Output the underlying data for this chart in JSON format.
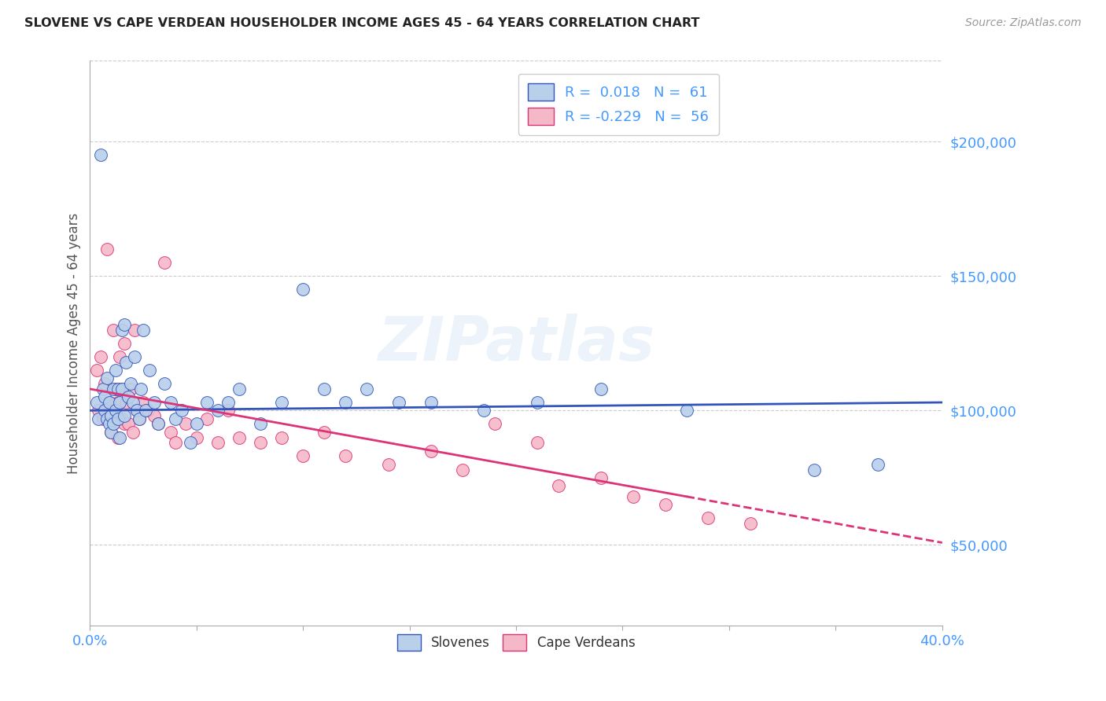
{
  "title": "SLOVENE VS CAPE VERDEAN HOUSEHOLDER INCOME AGES 45 - 64 YEARS CORRELATION CHART",
  "source": "Source: ZipAtlas.com",
  "ylabel": "Householder Income Ages 45 - 64 years",
  "xlim": [
    0.0,
    0.4
  ],
  "ylim": [
    20000,
    230000
  ],
  "xticks": [
    0.0,
    0.05,
    0.1,
    0.15,
    0.2,
    0.25,
    0.3,
    0.35,
    0.4
  ],
  "xticklabels": [
    "0.0%",
    "",
    "",
    "",
    "",
    "",
    "",
    "",
    "40.0%"
  ],
  "yticks_right": [
    50000,
    100000,
    150000,
    200000
  ],
  "ytick_labels_right": [
    "$50,000",
    "$100,000",
    "$150,000",
    "$200,000"
  ],
  "slovene_R": 0.018,
  "slovene_N": 61,
  "capeverdean_R": -0.229,
  "capeverdean_N": 56,
  "slovene_color": "#b8d0ea",
  "capeverdean_color": "#f5b8c8",
  "trend_slovene_color": "#3355bb",
  "trend_capeverdean_color": "#dd3377",
  "background_color": "#ffffff",
  "grid_color": "#cccccc",
  "title_color": "#222222",
  "axis_label_color": "#555555",
  "right_tick_color": "#4499ff",
  "watermark": "ZIPatlas",
  "slovene_x": [
    0.003,
    0.004,
    0.005,
    0.006,
    0.007,
    0.007,
    0.008,
    0.008,
    0.009,
    0.009,
    0.01,
    0.01,
    0.011,
    0.011,
    0.012,
    0.012,
    0.013,
    0.013,
    0.014,
    0.014,
    0.015,
    0.015,
    0.016,
    0.016,
    0.017,
    0.018,
    0.019,
    0.02,
    0.021,
    0.022,
    0.023,
    0.024,
    0.025,
    0.026,
    0.028,
    0.03,
    0.032,
    0.035,
    0.038,
    0.04,
    0.043,
    0.047,
    0.05,
    0.055,
    0.06,
    0.065,
    0.07,
    0.08,
    0.09,
    0.1,
    0.11,
    0.12,
    0.13,
    0.145,
    0.16,
    0.185,
    0.21,
    0.24,
    0.28,
    0.34,
    0.37
  ],
  "slovene_y": [
    103000,
    97000,
    195000,
    108000,
    105000,
    100000,
    112000,
    97000,
    103000,
    95000,
    98000,
    92000,
    108000,
    95000,
    115000,
    100000,
    108000,
    97000,
    103000,
    90000,
    130000,
    108000,
    132000,
    98000,
    118000,
    105000,
    110000,
    103000,
    120000,
    100000,
    97000,
    108000,
    130000,
    100000,
    115000,
    103000,
    95000,
    110000,
    103000,
    97000,
    100000,
    88000,
    95000,
    103000,
    100000,
    103000,
    108000,
    95000,
    103000,
    145000,
    108000,
    103000,
    108000,
    103000,
    103000,
    100000,
    103000,
    108000,
    100000,
    78000,
    80000
  ],
  "capeverdean_x": [
    0.003,
    0.004,
    0.005,
    0.006,
    0.007,
    0.008,
    0.009,
    0.01,
    0.01,
    0.011,
    0.011,
    0.012,
    0.012,
    0.013,
    0.013,
    0.014,
    0.015,
    0.015,
    0.016,
    0.016,
    0.017,
    0.018,
    0.019,
    0.02,
    0.021,
    0.022,
    0.023,
    0.025,
    0.027,
    0.03,
    0.032,
    0.035,
    0.038,
    0.04,
    0.045,
    0.05,
    0.055,
    0.06,
    0.065,
    0.07,
    0.08,
    0.09,
    0.1,
    0.11,
    0.12,
    0.14,
    0.16,
    0.175,
    0.19,
    0.21,
    0.22,
    0.24,
    0.255,
    0.27,
    0.29,
    0.31
  ],
  "capeverdean_y": [
    115000,
    100000,
    120000,
    97000,
    110000,
    160000,
    103000,
    100000,
    92000,
    130000,
    95000,
    108000,
    97000,
    103000,
    90000,
    120000,
    108000,
    97000,
    125000,
    95000,
    103000,
    95000,
    108000,
    92000,
    130000,
    100000,
    97000,
    103000,
    100000,
    98000,
    95000,
    155000,
    92000,
    88000,
    95000,
    90000,
    97000,
    88000,
    100000,
    90000,
    88000,
    90000,
    83000,
    92000,
    83000,
    80000,
    85000,
    78000,
    95000,
    88000,
    72000,
    75000,
    68000,
    65000,
    60000,
    58000
  ]
}
